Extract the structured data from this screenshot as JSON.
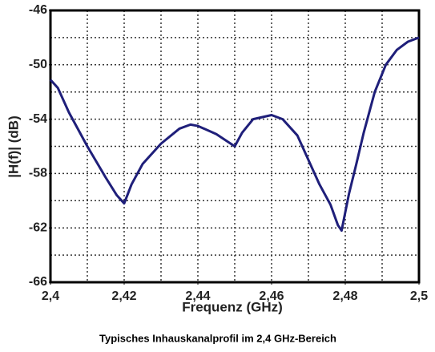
{
  "chart_data": {
    "type": "line",
    "xlabel": "Frequenz (GHz)",
    "ylabel": "|H(f)|  (dB)",
    "caption": "Typisches Inhauskanalprofil im 2,4 GHz-Bereich",
    "series": [
      {
        "color": "#1f1f7a",
        "x": [
          2.4,
          2.402,
          2.405,
          2.41,
          2.415,
          2.418,
          2.42,
          2.422,
          2.425,
          2.43,
          2.435,
          2.438,
          2.44,
          2.445,
          2.45,
          2.452,
          2.455,
          2.46,
          2.463,
          2.467,
          2.47,
          2.473,
          2.476,
          2.478,
          2.479,
          2.481,
          2.483,
          2.485,
          2.488,
          2.491,
          2.494,
          2.497,
          2.5
        ],
        "values": [
          -51.1,
          -51.7,
          -53.5,
          -56.0,
          -58.3,
          -59.6,
          -60.2,
          -58.8,
          -57.3,
          -55.8,
          -54.7,
          -54.4,
          -54.5,
          -55.1,
          -56.0,
          -55.0,
          -54.0,
          -53.7,
          -54.0,
          -55.2,
          -57.0,
          -58.8,
          -60.3,
          -61.8,
          -62.2,
          -59.5,
          -57.3,
          -55.0,
          -52.0,
          -50.0,
          -48.9,
          -48.3,
          -48.0
        ]
      }
    ],
    "xlim": [
      2.4,
      2.5
    ],
    "xticks": [
      {
        "value": 2.4,
        "label": "2,4"
      },
      {
        "value": 2.42,
        "label": "2,42"
      },
      {
        "value": 2.44,
        "label": "2,44"
      },
      {
        "value": 2.46,
        "label": "2,46"
      },
      {
        "value": 2.48,
        "label": "2,48"
      },
      {
        "value": 2.5,
        "label": "2,5"
      }
    ],
    "xgrid": [
      2.41,
      2.42,
      2.43,
      2.44,
      2.45,
      2.46,
      2.47,
      2.48,
      2.49
    ],
    "ylim": [
      -66,
      -46
    ],
    "yticks": [
      -66,
      -62,
      -58,
      -54,
      -50,
      -46
    ],
    "ygrid": [
      -64,
      -62,
      -60,
      -58,
      -56,
      -54,
      -52,
      -50,
      -48
    ],
    "grid": true
  }
}
